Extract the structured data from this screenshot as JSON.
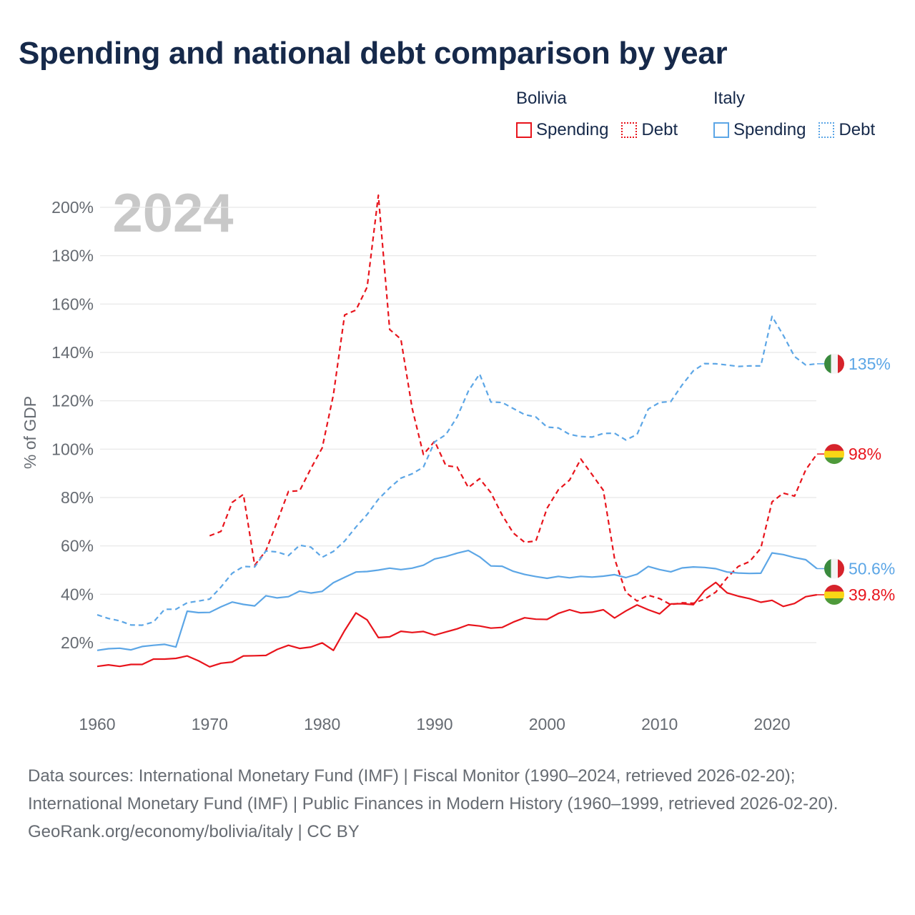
{
  "title": "Spending and national debt comparison by year",
  "legend": {
    "groups": [
      {
        "name": "Bolivia",
        "color": "#e8141c",
        "items": [
          {
            "label": "Spending",
            "style": "solid"
          },
          {
            "label": "Debt",
            "style": "dotted"
          }
        ]
      },
      {
        "name": "Italy",
        "color": "#5ca6e6",
        "items": [
          {
            "label": "Spending",
            "style": "solid"
          },
          {
            "label": "Debt",
            "style": "dotted"
          }
        ]
      }
    ]
  },
  "footer": {
    "sources": "Data sources: International Monetary Fund (IMF) | Fiscal Monitor (1990–2024, retrieved 2026-02-20); International Monetary Fund (IMF) | Public Finances in Modern History (1960–1999, retrieved 2026-02-20).",
    "credit": "GeoRank.org/economy/bolivia/italy | CC BY"
  },
  "chart_data": {
    "type": "line",
    "year_label": "2024",
    "ylabel": "% of GDP",
    "xlabel": "",
    "xlim": [
      1960,
      2025
    ],
    "ylim": [
      0,
      210
    ],
    "xticks": [
      1960,
      1970,
      1980,
      1990,
      2000,
      2010,
      2020
    ],
    "yticks": [
      20,
      40,
      60,
      80,
      100,
      120,
      140,
      160,
      180,
      200
    ],
    "ytick_labels": [
      "20%",
      "40%",
      "60%",
      "80%",
      "100%",
      "120%",
      "140%",
      "160%",
      "180%",
      "200%"
    ],
    "grid": true,
    "series": [
      {
        "name": "Bolivia Spending",
        "country": "Bolivia",
        "measure": "Spending",
        "color": "#e8141c",
        "dash": "solid",
        "end_label": "39.8%",
        "flag": "bolivia",
        "x": [
          1960,
          1961,
          1962,
          1963,
          1964,
          1965,
          1966,
          1967,
          1968,
          1969,
          1970,
          1971,
          1972,
          1973,
          1974,
          1975,
          1976,
          1977,
          1978,
          1979,
          1980,
          1981,
          1982,
          1983,
          1984,
          1985,
          1986,
          1987,
          1988,
          1989,
          1990,
          1991,
          1992,
          1993,
          1994,
          1995,
          1996,
          1997,
          1998,
          1999,
          2000,
          2001,
          2002,
          2003,
          2004,
          2005,
          2006,
          2007,
          2008,
          2009,
          2010,
          2011,
          2012,
          2013,
          2014,
          2015,
          2016,
          2017,
          2018,
          2019,
          2020,
          2021,
          2022,
          2023,
          2024
        ],
        "values": [
          10.2,
          10.8,
          10.2,
          11.0,
          11.0,
          13.2,
          13.2,
          13.5,
          14.5,
          12.5,
          10.0,
          11.5,
          12.0,
          14.5,
          14.6,
          14.7,
          17.2,
          18.9,
          17.6,
          18.2,
          19.9,
          16.8,
          25.0,
          32.3,
          29.4,
          22.1,
          22.4,
          24.7,
          24.2,
          24.6,
          23.1,
          24.4,
          25.7,
          27.4,
          26.9,
          26.0,
          26.3,
          28.5,
          30.3,
          29.7,
          29.6,
          32.1,
          33.6,
          32.3,
          32.6,
          33.6,
          30.2,
          33.1,
          35.6,
          33.6,
          31.9,
          36.0,
          36.1,
          35.7,
          41.5,
          44.9,
          40.6,
          39.2,
          38.2,
          36.7,
          37.5,
          35.0,
          36.2,
          39.0,
          39.8
        ]
      },
      {
        "name": "Bolivia Debt",
        "country": "Bolivia",
        "measure": "Debt",
        "color": "#e8141c",
        "dash": "dashed",
        "end_label": "98%",
        "flag": "bolivia",
        "x": [
          1970,
          1971,
          1972,
          1973,
          1974,
          1975,
          1976,
          1977,
          1978,
          1979,
          1980,
          1981,
          1982,
          1983,
          1984,
          1985,
          1986,
          1987,
          1988,
          1989,
          1990,
          1991,
          1992,
          1993,
          1994,
          1995,
          1996,
          1997,
          1998,
          1999,
          2000,
          2001,
          2002,
          2003,
          2004,
          2005,
          2006,
          2007,
          2008,
          2009,
          2010,
          2011,
          2012,
          2013,
          2014,
          2015,
          2016,
          2017,
          2018,
          2019,
          2020,
          2021,
          2022,
          2023,
          2024
        ],
        "values": [
          64.2,
          66.0,
          78.0,
          81.3,
          52.0,
          58.0,
          70.0,
          82.5,
          82.8,
          92.0,
          100.5,
          122.5,
          155.5,
          157.5,
          167.0,
          205.0,
          149.5,
          145.5,
          117.0,
          97.8,
          103.3,
          93.2,
          92.6,
          84.1,
          87.8,
          82.0,
          72.8,
          65.3,
          61.5,
          62.0,
          75.6,
          83.2,
          87.2,
          95.9,
          89.5,
          83.0,
          54.7,
          40.8,
          37.2,
          39.6,
          38.2,
          35.7,
          36.5,
          36.3,
          38.0,
          40.9,
          46.8,
          51.5,
          53.5,
          59.0,
          78.2,
          81.8,
          80.6,
          91.5,
          98.0
        ]
      },
      {
        "name": "Italy Spending",
        "country": "Italy",
        "measure": "Spending",
        "color": "#5ca6e6",
        "dash": "solid",
        "end_label": "50.6%",
        "flag": "italy",
        "x": [
          1960,
          1961,
          1962,
          1963,
          1964,
          1965,
          1966,
          1967,
          1968,
          1969,
          1970,
          1971,
          1972,
          1973,
          1974,
          1975,
          1976,
          1977,
          1978,
          1979,
          1980,
          1981,
          1982,
          1983,
          1984,
          1985,
          1986,
          1987,
          1988,
          1989,
          1990,
          1991,
          1992,
          1993,
          1994,
          1995,
          1996,
          1997,
          1998,
          1999,
          2000,
          2001,
          2002,
          2003,
          2004,
          2005,
          2006,
          2007,
          2008,
          2009,
          2010,
          2011,
          2012,
          2013,
          2014,
          2015,
          2016,
          2017,
          2018,
          2019,
          2020,
          2021,
          2022,
          2023,
          2024
        ],
        "values": [
          16.8,
          17.5,
          17.7,
          17.0,
          18.4,
          18.9,
          19.3,
          18.2,
          33.0,
          32.4,
          32.5,
          34.8,
          36.8,
          35.8,
          35.2,
          39.4,
          38.5,
          39.0,
          41.3,
          40.5,
          41.2,
          44.8,
          47.0,
          49.2,
          49.4,
          50.0,
          50.8,
          50.2,
          50.8,
          52.0,
          54.6,
          55.6,
          57.0,
          58.1,
          55.5,
          51.7,
          51.6,
          49.5,
          48.2,
          47.3,
          46.6,
          47.4,
          46.8,
          47.4,
          47.1,
          47.5,
          48.1,
          46.9,
          48.3,
          51.5,
          50.2,
          49.3,
          50.9,
          51.3,
          51.1,
          50.6,
          49.2,
          48.8,
          48.6,
          48.7,
          57.1,
          56.4,
          55.2,
          54.3,
          50.6
        ]
      },
      {
        "name": "Italy Debt",
        "country": "Italy",
        "measure": "Debt",
        "color": "#5ca6e6",
        "dash": "dashed",
        "end_label": "135%",
        "flag": "italy",
        "x": [
          1960,
          1961,
          1962,
          1963,
          1964,
          1965,
          1966,
          1967,
          1968,
          1969,
          1970,
          1971,
          1972,
          1973,
          1974,
          1975,
          1976,
          1977,
          1978,
          1979,
          1980,
          1981,
          1982,
          1983,
          1984,
          1985,
          1986,
          1987,
          1988,
          1989,
          1990,
          1991,
          1992,
          1993,
          1994,
          1995,
          1996,
          1997,
          1998,
          1999,
          2000,
          2001,
          2002,
          2003,
          2004,
          2005,
          2006,
          2007,
          2008,
          2009,
          2010,
          2011,
          2012,
          2013,
          2014,
          2015,
          2016,
          2017,
          2018,
          2019,
          2020,
          2021,
          2022,
          2023,
          2024
        ],
        "values": [
          31.5,
          30.0,
          29.0,
          27.3,
          27.2,
          28.5,
          33.8,
          33.8,
          36.5,
          37.2,
          38.0,
          43.0,
          48.7,
          51.5,
          51.3,
          57.9,
          57.5,
          56.0,
          60.3,
          59.5,
          55.3,
          57.7,
          62.0,
          67.8,
          73.0,
          79.3,
          84.0,
          88.0,
          89.8,
          92.6,
          103.0,
          106.0,
          113.3,
          124.0,
          131.1,
          119.5,
          119.3,
          116.8,
          114.3,
          113.3,
          109.1,
          108.8,
          106.1,
          105.2,
          105.0,
          106.5,
          106.6,
          103.8,
          106.1,
          116.6,
          119.3,
          119.7,
          126.5,
          132.4,
          135.4,
          135.3,
          134.8,
          134.2,
          134.4,
          134.4,
          154.9,
          147.1,
          138.3,
          134.8,
          135.3
        ]
      }
    ]
  }
}
